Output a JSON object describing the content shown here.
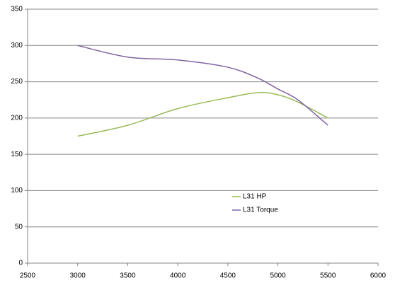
{
  "chart_data": {
    "type": "line",
    "x": [
      3000,
      3500,
      4000,
      4500,
      4800,
      5000,
      5200,
      5500
    ],
    "series": [
      {
        "name": "L31 HP",
        "color": "#9bbb59",
        "values": [
          175,
          190,
          213,
          228,
          235,
          232,
          222,
          200
        ]
      },
      {
        "name": "L31 Torque",
        "color": "#8064a2",
        "values": [
          300,
          284,
          280,
          270,
          255,
          240,
          225,
          190
        ]
      }
    ],
    "xlim": [
      2500,
      6000
    ],
    "xticks": [
      2500,
      3000,
      3500,
      4000,
      4500,
      5000,
      5500,
      6000
    ],
    "ylim": [
      0,
      350
    ],
    "yticks": [
      0,
      50,
      100,
      150,
      200,
      250,
      300,
      350
    ],
    "grid": true
  }
}
